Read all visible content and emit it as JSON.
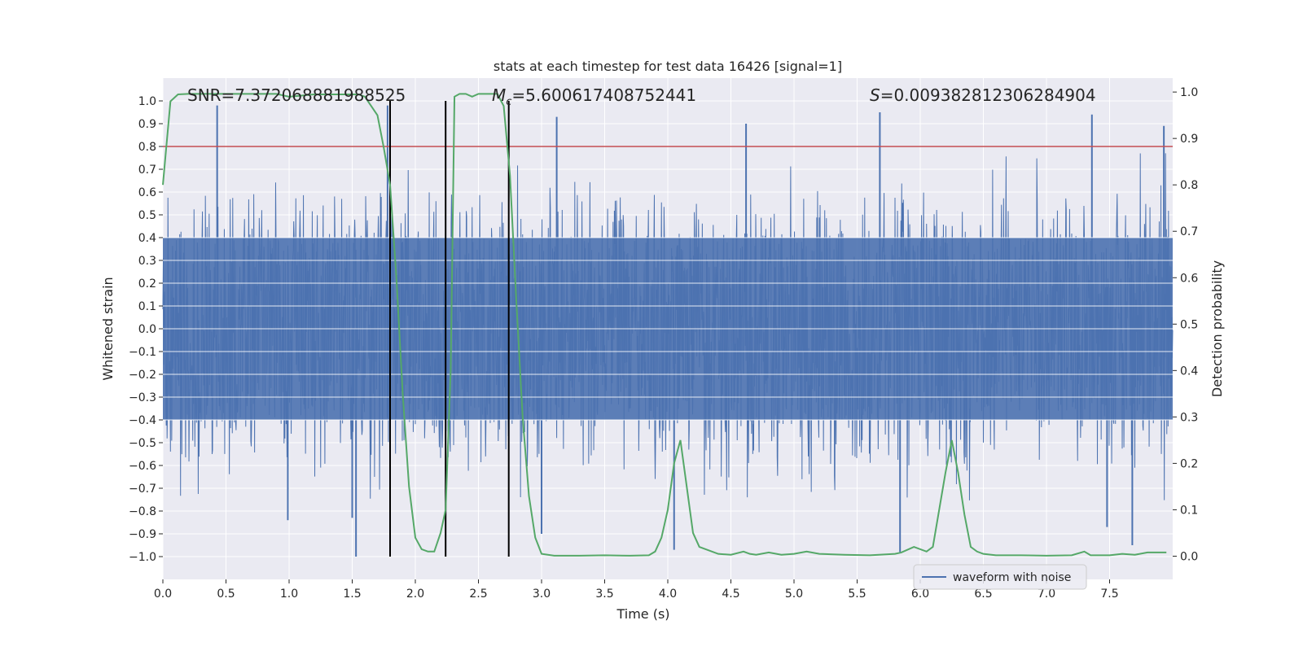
{
  "chart_data": {
    "type": "line",
    "title": "stats at each timestep for test data 16426 [signal=1]",
    "xlabel": "Time (s)",
    "ylabel": "Whitened strain",
    "y2label": "Detection probability",
    "xlim": [
      0.0,
      8.0
    ],
    "ylim": [
      -1.1,
      1.1
    ],
    "y2lim": [
      -0.05,
      1.03
    ],
    "xticks": [
      "0.0",
      "0.5",
      "1.0",
      "1.5",
      "2.0",
      "2.5",
      "3.0",
      "3.5",
      "4.0",
      "4.5",
      "5.0",
      "5.5",
      "6.0",
      "6.5",
      "7.0",
      "7.5"
    ],
    "yticks": [
      "1.0",
      "0.9",
      "0.8",
      "0.7",
      "0.6",
      "0.5",
      "0.4",
      "0.3",
      "0.2",
      "0.1",
      "0.0",
      "−0.1",
      "−0.2",
      "−0.3",
      "−0.4",
      "−0.5",
      "−0.6",
      "−0.7",
      "−0.8",
      "−0.9",
      "−1.0"
    ],
    "y2ticks": [
      "1.0",
      "0.9",
      "0.8",
      "0.7",
      "0.6",
      "0.5",
      "0.4",
      "0.3",
      "0.2",
      "0.1",
      "0.0"
    ],
    "grid": true,
    "legend_position": "lower-right",
    "annotations": {
      "snr": "SNR=7.372068881988525",
      "mc_symbol": "M",
      "mc_sub": "c",
      "mc_value": "=5.600617408752441",
      "s_symbol": "S",
      "s_value": "=0.009382812306284904"
    },
    "threshold": {
      "value": 0.8,
      "color": "#c44e52"
    },
    "vlines": [
      1.8,
      2.24,
      2.74
    ],
    "series": [
      {
        "name": "waveform with noise",
        "axis": "left",
        "color": "#4c72b0",
        "kind": "dense-noise",
        "duration_s": 8.0,
        "core_range": [
          -0.4,
          0.4
        ],
        "typical_range": [
          -0.65,
          0.65
        ],
        "spikes": [
          [
            0.43,
            0.98
          ],
          [
            1.78,
            0.98
          ],
          [
            3.12,
            0.93
          ],
          [
            4.62,
            0.9
          ],
          [
            5.68,
            0.95
          ],
          [
            7.36,
            0.94
          ],
          [
            7.93,
            0.89
          ],
          [
            1.53,
            -1.0
          ],
          [
            4.05,
            -0.97
          ],
          [
            5.84,
            -0.98
          ],
          [
            7.68,
            -0.95
          ],
          [
            0.99,
            -0.84
          ],
          [
            1.5,
            -0.83
          ],
          [
            3.0,
            -0.9
          ],
          [
            7.48,
            -0.87
          ]
        ]
      },
      {
        "name": "detection probability",
        "axis": "right",
        "color": "#55a868",
        "x": [
          0.0,
          0.06,
          0.12,
          0.2,
          0.3,
          0.5,
          0.7,
          0.9,
          1.0,
          1.2,
          1.4,
          1.55,
          1.6,
          1.65,
          1.7,
          1.75,
          1.8,
          1.85,
          1.9,
          1.95,
          2.0,
          2.05,
          2.1,
          2.15,
          2.2,
          2.24,
          2.28,
          2.31,
          2.35,
          2.4,
          2.45,
          2.5,
          2.55,
          2.6,
          2.65,
          2.7,
          2.75,
          2.8,
          2.85,
          2.9,
          2.95,
          3.0,
          3.1,
          3.2,
          3.3,
          3.5,
          3.7,
          3.85,
          3.9,
          3.95,
          4.0,
          4.05,
          4.1,
          4.15,
          4.2,
          4.25,
          4.3,
          4.4,
          4.5,
          4.6,
          4.65,
          4.7,
          4.8,
          4.9,
          5.0,
          5.1,
          5.2,
          5.4,
          5.6,
          5.8,
          5.85,
          5.95,
          6.05,
          6.1,
          6.15,
          6.2,
          6.25,
          6.3,
          6.35,
          6.4,
          6.45,
          6.5,
          6.6,
          6.8,
          7.0,
          7.2,
          7.3,
          7.35,
          7.4,
          7.5,
          7.6,
          7.7,
          7.8,
          7.9,
          7.95
        ],
        "y": [
          0.8,
          0.98,
          0.995,
          0.996,
          0.996,
          0.996,
          0.996,
          0.996,
          0.99,
          0.995,
          0.995,
          0.995,
          0.99,
          0.97,
          0.95,
          0.88,
          0.8,
          0.6,
          0.35,
          0.15,
          0.04,
          0.015,
          0.01,
          0.01,
          0.05,
          0.1,
          0.4,
          0.99,
          0.996,
          0.996,
          0.99,
          0.996,
          0.996,
          0.996,
          0.996,
          0.97,
          0.82,
          0.55,
          0.3,
          0.13,
          0.04,
          0.005,
          0.001,
          0.001,
          0.001,
          0.002,
          0.001,
          0.002,
          0.01,
          0.04,
          0.1,
          0.2,
          0.25,
          0.15,
          0.05,
          0.02,
          0.015,
          0.005,
          0.003,
          0.01,
          0.005,
          0.003,
          0.008,
          0.003,
          0.005,
          0.01,
          0.005,
          0.003,
          0.002,
          0.005,
          0.008,
          0.02,
          0.01,
          0.02,
          0.1,
          0.18,
          0.25,
          0.18,
          0.09,
          0.02,
          0.01,
          0.005,
          0.002,
          0.002,
          0.001,
          0.002,
          0.01,
          0.002,
          0.002,
          0.002,
          0.005,
          0.003,
          0.008,
          0.008,
          0.008
        ]
      }
    ]
  }
}
